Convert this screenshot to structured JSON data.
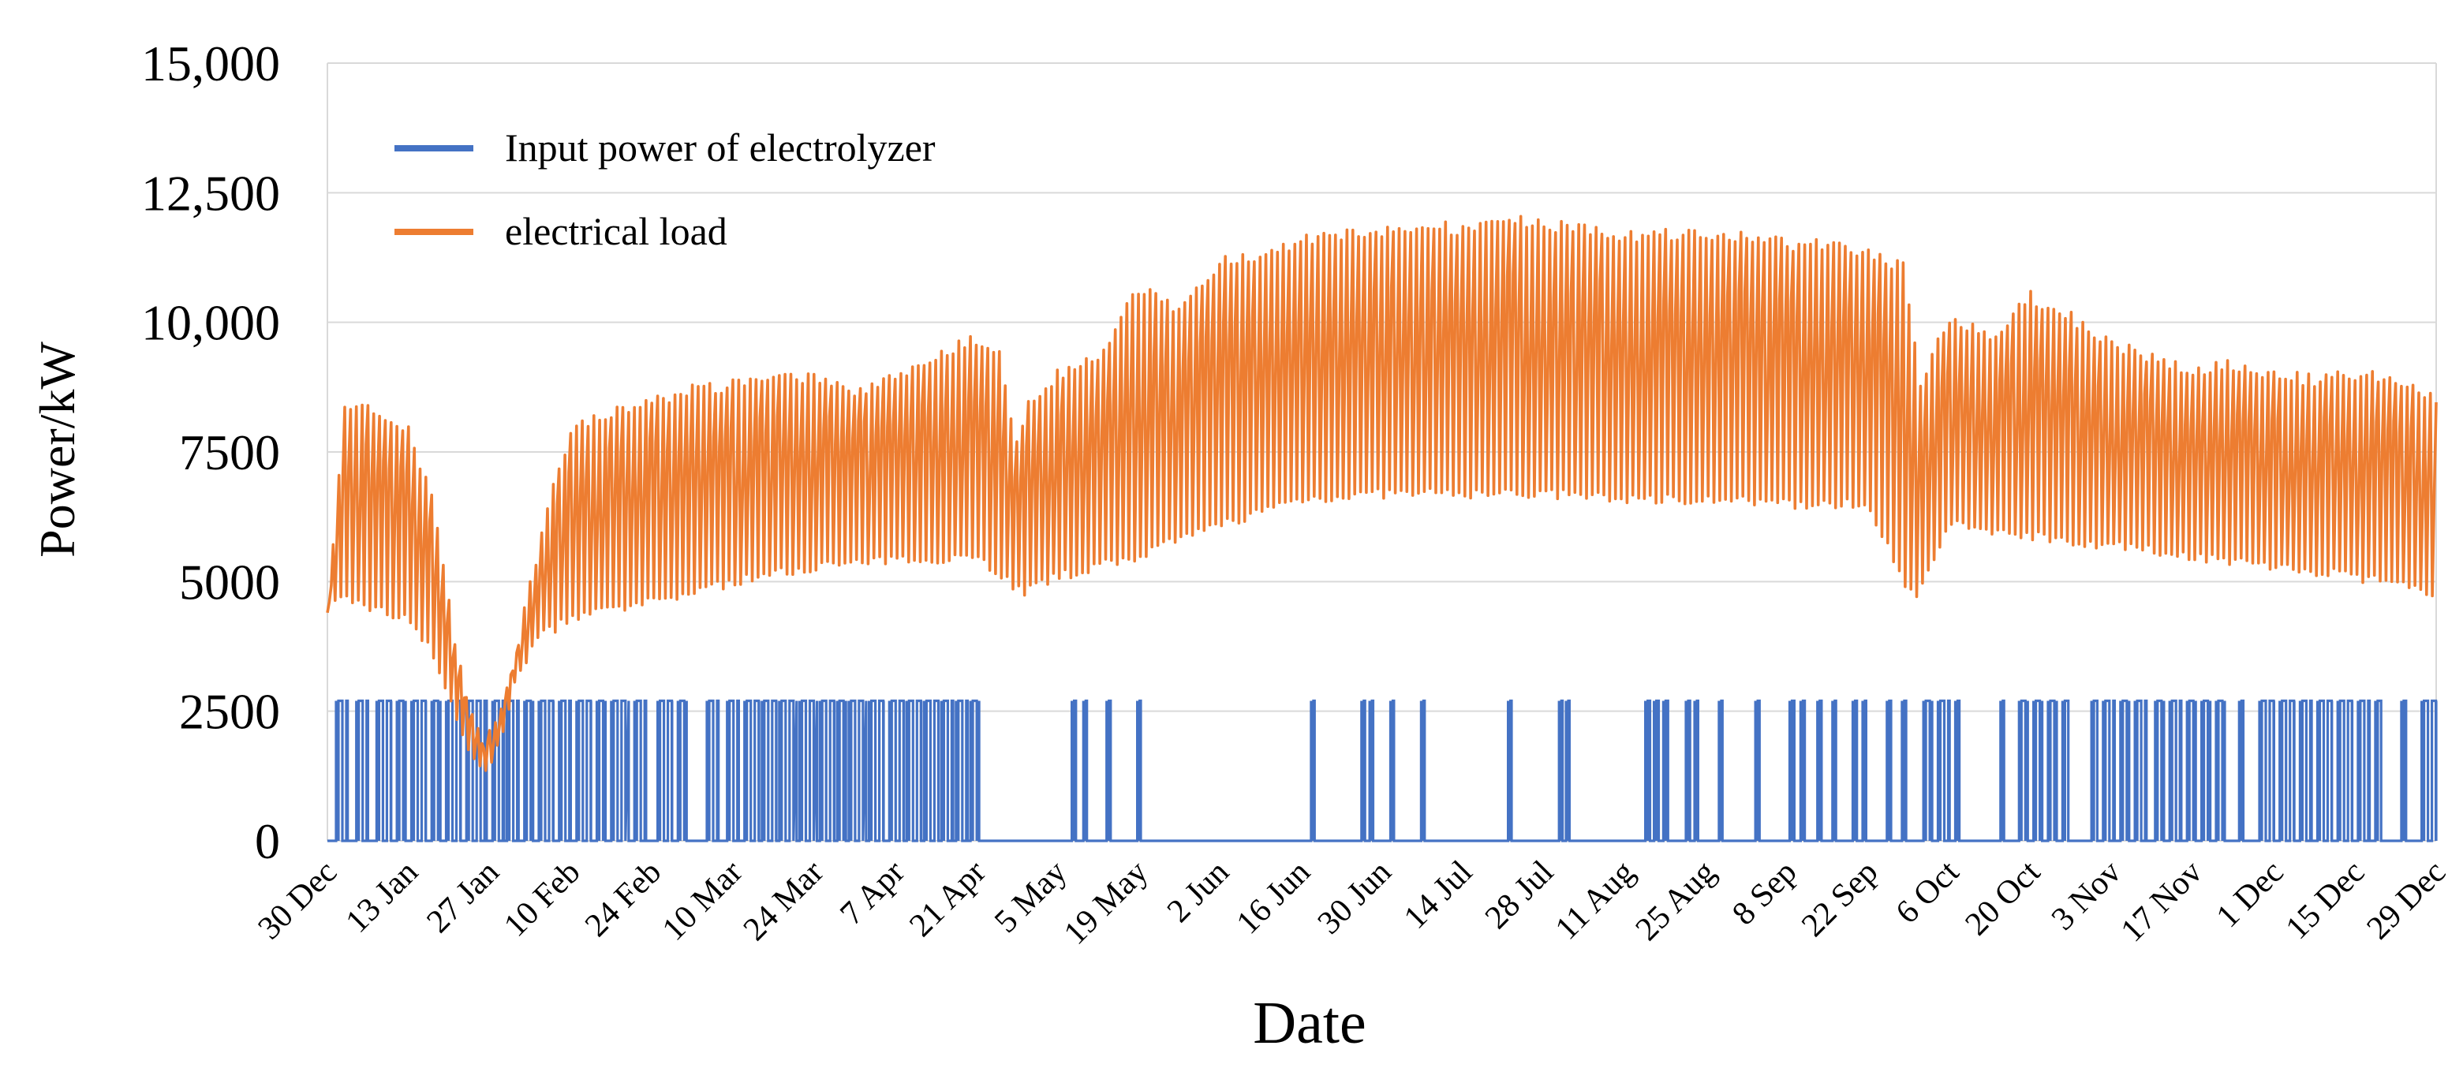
{
  "chart_data": {
    "type": "line",
    "title": "",
    "xlabel": "Date",
    "ylabel": "Power/kW",
    "ylim": [
      0,
      15000
    ],
    "grid": true,
    "legend_position": "top-left",
    "y_ticks": [
      {
        "value": 0,
        "label": "0"
      },
      {
        "value": 2500,
        "label": "2500"
      },
      {
        "value": 5000,
        "label": "5000"
      },
      {
        "value": 7500,
        "label": "7500"
      },
      {
        "value": 10000,
        "label": "10,000"
      },
      {
        "value": 12500,
        "label": "12,500"
      },
      {
        "value": 15000,
        "label": "15,000"
      }
    ],
    "x_start_day": 0,
    "x_end_day": 364,
    "x_ticks": [
      {
        "day": 0,
        "label": "30 Dec"
      },
      {
        "day": 14,
        "label": "13 Jan"
      },
      {
        "day": 28,
        "label": "27 Jan"
      },
      {
        "day": 42,
        "label": "10 Feb"
      },
      {
        "day": 56,
        "label": "24 Feb"
      },
      {
        "day": 70,
        "label": "10 Mar"
      },
      {
        "day": 84,
        "label": "24 Mar"
      },
      {
        "day": 98,
        "label": "7 Apr"
      },
      {
        "day": 112,
        "label": "21 Apr"
      },
      {
        "day": 126,
        "label": "5 May"
      },
      {
        "day": 140,
        "label": "19 May"
      },
      {
        "day": 154,
        "label": "2 Jun"
      },
      {
        "day": 168,
        "label": "16 Jun"
      },
      {
        "day": 182,
        "label": "30 Jun"
      },
      {
        "day": 196,
        "label": "14 Jul"
      },
      {
        "day": 210,
        "label": "28 Jul"
      },
      {
        "day": 224,
        "label": "11 Aug"
      },
      {
        "day": 238,
        "label": "25 Aug"
      },
      {
        "day": 252,
        "label": "8 Sep"
      },
      {
        "day": 266,
        "label": "22 Sep"
      },
      {
        "day": 280,
        "label": "6 Oct"
      },
      {
        "day": 294,
        "label": "20 Oct"
      },
      {
        "day": 308,
        "label": "3 Nov"
      },
      {
        "day": 322,
        "label": "17 Nov"
      },
      {
        "day": 336,
        "label": "1 Dec"
      },
      {
        "day": 350,
        "label": "15 Dec"
      },
      {
        "day": 364,
        "label": "29 Dec"
      }
    ],
    "series": [
      {
        "name": "Input power of electrolyzer",
        "color": "#4472C4",
        "style": "on-off spikes",
        "on_value": 2700,
        "off_value": 0,
        "on_intervals_day": [
          [
            1.5,
            3.5
          ],
          [
            5,
            7
          ],
          [
            8.5,
            11
          ],
          [
            12,
            13.5
          ],
          [
            14.5,
            17
          ],
          [
            18,
            19.5
          ],
          [
            20.5,
            23
          ],
          [
            24,
            27.5
          ],
          [
            28.5,
            30.5
          ],
          [
            31,
            33
          ],
          [
            34,
            35.5
          ],
          [
            36.5,
            39
          ],
          [
            40,
            42
          ],
          [
            43,
            45.5
          ],
          [
            46.5,
            48
          ],
          [
            49,
            52
          ],
          [
            53,
            55
          ],
          [
            57,
            59.5
          ],
          [
            60.5,
            62
          ],
          [
            65.5,
            67.5
          ],
          [
            69,
            71
          ],
          [
            72,
            74.5
          ],
          [
            75,
            77.5
          ],
          [
            78,
            81
          ],
          [
            81.5,
            84.5
          ],
          [
            85,
            87.5
          ],
          [
            88,
            89.5
          ],
          [
            90,
            93
          ],
          [
            93.5,
            96
          ],
          [
            97,
            99.5
          ],
          [
            100,
            102.5
          ],
          [
            103,
            105.5
          ],
          [
            106,
            108
          ],
          [
            108.5,
            110.5
          ],
          [
            111,
            112.5
          ],
          [
            128.5,
            129.2
          ],
          [
            130.5,
            131.1
          ],
          [
            134.5,
            135.2
          ],
          [
            139.8,
            140.4
          ],
          [
            169.8,
            170.4
          ],
          [
            178.5,
            179.1
          ],
          [
            179.9,
            180.5
          ],
          [
            183.5,
            184.1
          ],
          [
            188.8,
            189.4
          ],
          [
            203.8,
            204.4
          ],
          [
            212.6,
            213.2
          ],
          [
            213.8,
            214.4
          ],
          [
            227.5,
            228.3
          ],
          [
            229,
            229.8
          ],
          [
            230.6,
            231.4
          ],
          [
            234.5,
            235.2
          ],
          [
            236,
            236.6
          ],
          [
            240.2,
            240.8
          ],
          [
            246.5,
            247.2
          ],
          [
            252.4,
            253.2
          ],
          [
            254.3,
            255
          ],
          [
            257.2,
            257.9
          ],
          [
            259.8,
            260.4
          ],
          [
            263.3,
            264
          ],
          [
            265,
            265.6
          ],
          [
            269.2,
            269.9
          ],
          [
            271.8,
            272.5
          ],
          [
            275.5,
            277
          ],
          [
            278,
            280
          ],
          [
            281,
            281.7
          ],
          [
            288.8,
            289.4
          ],
          [
            292,
            293.5
          ],
          [
            294.5,
            296
          ],
          [
            297,
            298.5
          ],
          [
            299.5,
            300.5
          ],
          [
            304.5,
            305.5
          ],
          [
            306.5,
            308.5
          ],
          [
            309.5,
            311
          ],
          [
            312,
            314
          ],
          [
            315.5,
            317
          ],
          [
            318,
            320
          ],
          [
            321,
            322.5
          ],
          [
            323.5,
            325
          ],
          [
            326,
            327.5
          ],
          [
            330,
            330.7
          ],
          [
            333.5,
            336
          ],
          [
            337,
            339.5
          ],
          [
            340.5,
            342.5
          ],
          [
            343.5,
            346
          ],
          [
            347,
            349.5
          ],
          [
            350.5,
            352.5
          ],
          [
            353.5,
            354.5
          ],
          [
            358,
            358.8
          ],
          [
            361.5,
            364
          ]
        ]
      },
      {
        "name": "electrical load",
        "color": "#ED7D31",
        "style": "daily oscillation",
        "samples_per_day": 3,
        "daily_high_kw": [
          [
            0,
            4400
          ],
          [
            3,
            8500
          ],
          [
            7,
            8600
          ],
          [
            10,
            8200
          ],
          [
            14,
            8000
          ],
          [
            18,
            6800
          ],
          [
            22,
            4000
          ],
          [
            25,
            2500
          ],
          [
            27,
            2000
          ],
          [
            29,
            2300
          ],
          [
            32,
            3500
          ],
          [
            36,
            5500
          ],
          [
            39,
            7000
          ],
          [
            42,
            8000
          ],
          [
            49,
            8400
          ],
          [
            56,
            8600
          ],
          [
            63,
            8800
          ],
          [
            70,
            8900
          ],
          [
            77,
            9000
          ],
          [
            84,
            9100
          ],
          [
            91,
            8800
          ],
          [
            97,
            9000
          ],
          [
            105,
            9500
          ],
          [
            112,
            9800
          ],
          [
            116,
            9500
          ],
          [
            119,
            7800
          ],
          [
            121,
            8600
          ],
          [
            126,
            9100
          ],
          [
            133,
            9400
          ],
          [
            138,
            10500
          ],
          [
            141,
            10700
          ],
          [
            147,
            10300
          ],
          [
            154,
            11300
          ],
          [
            161,
            11400
          ],
          [
            168,
            11700
          ],
          [
            175,
            11800
          ],
          [
            182,
            11900
          ],
          [
            189,
            12000
          ],
          [
            196,
            11900
          ],
          [
            203,
            12100
          ],
          [
            210,
            12000
          ],
          [
            217,
            11900
          ],
          [
            224,
            11800
          ],
          [
            231,
            11800
          ],
          [
            238,
            11800
          ],
          [
            245,
            11800
          ],
          [
            252,
            11600
          ],
          [
            259,
            11600
          ],
          [
            266,
            11400
          ],
          [
            272,
            11200
          ],
          [
            275,
            9000
          ],
          [
            280,
            10200
          ],
          [
            287,
            9800
          ],
          [
            294,
            10600
          ],
          [
            301,
            10200
          ],
          [
            308,
            9700
          ],
          [
            315,
            9400
          ],
          [
            322,
            9200
          ],
          [
            329,
            9300
          ],
          [
            336,
            9100
          ],
          [
            343,
            9000
          ],
          [
            350,
            9100
          ],
          [
            357,
            9000
          ],
          [
            364,
            8600
          ]
        ],
        "daily_low_kw": [
          [
            0,
            4400
          ],
          [
            3,
            4600
          ],
          [
            10,
            4300
          ],
          [
            14,
            4200
          ],
          [
            18,
            3600
          ],
          [
            22,
            2300
          ],
          [
            25,
            1500
          ],
          [
            27,
            1300
          ],
          [
            29,
            1500
          ],
          [
            32,
            2800
          ],
          [
            36,
            3800
          ],
          [
            42,
            4200
          ],
          [
            56,
            4500
          ],
          [
            70,
            4900
          ],
          [
            84,
            5200
          ],
          [
            97,
            5300
          ],
          [
            112,
            5400
          ],
          [
            120,
            4700
          ],
          [
            126,
            5000
          ],
          [
            140,
            5400
          ],
          [
            154,
            6000
          ],
          [
            168,
            6500
          ],
          [
            182,
            6600
          ],
          [
            196,
            6600
          ],
          [
            210,
            6600
          ],
          [
            224,
            6500
          ],
          [
            238,
            6500
          ],
          [
            252,
            6400
          ],
          [
            266,
            6400
          ],
          [
            274,
            4500
          ],
          [
            280,
            6000
          ],
          [
            294,
            5800
          ],
          [
            308,
            5600
          ],
          [
            322,
            5400
          ],
          [
            336,
            5200
          ],
          [
            350,
            5000
          ],
          [
            364,
            4700
          ]
        ]
      }
    ]
  }
}
